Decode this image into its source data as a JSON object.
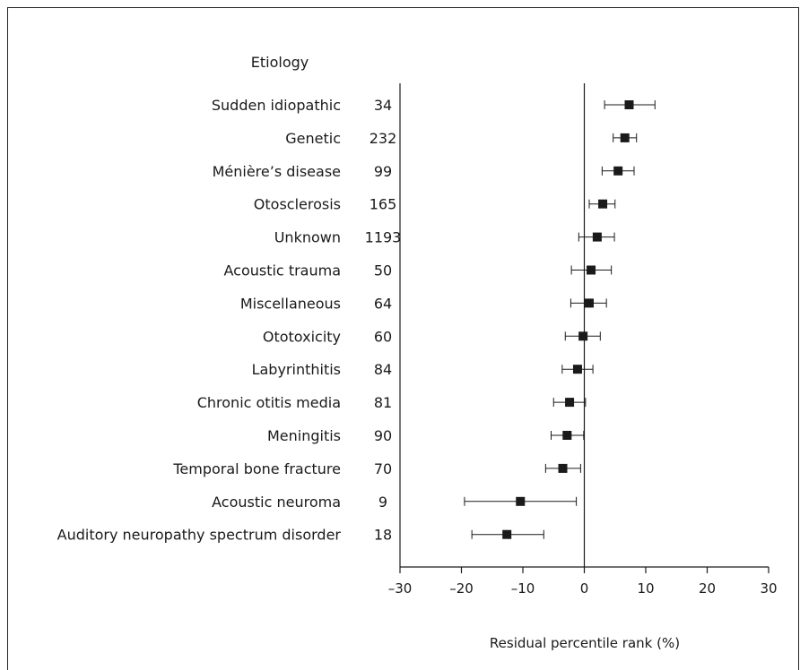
{
  "chart_data": {
    "type": "scatter",
    "subtype": "forest-plot",
    "column_header": "Etiology",
    "xlabel": "Residual percentile rank (%)",
    "xlim": [
      -30,
      30
    ],
    "xticks": [
      "–30",
      "–20",
      "–10",
      "0",
      "10",
      "20",
      "30"
    ],
    "xtick_values": [
      -30,
      -20,
      -10,
      0,
      10,
      20,
      30
    ],
    "reference_line_x": 0,
    "rows": [
      {
        "label": "Sudden idiopathic",
        "n": "34",
        "estimate": 7.3,
        "lower": 3.3,
        "upper": 11.5
      },
      {
        "label": "Genetic",
        "n": "232",
        "estimate": 6.6,
        "lower": 4.7,
        "upper": 8.5
      },
      {
        "label": "Ménière’s disease",
        "n": "99",
        "estimate": 5.5,
        "lower": 2.9,
        "upper": 8.1
      },
      {
        "label": "Otosclerosis",
        "n": "165",
        "estimate": 3.0,
        "lower": 0.8,
        "upper": 5.0
      },
      {
        "label": "Unknown",
        "n": "1193",
        "estimate": 2.1,
        "lower": -0.9,
        "upper": 4.9
      },
      {
        "label": "Acoustic trauma",
        "n": "50",
        "estimate": 1.1,
        "lower": -2.1,
        "upper": 4.4
      },
      {
        "label": "Miscellaneous",
        "n": "64",
        "estimate": 0.8,
        "lower": -2.2,
        "upper": 3.6
      },
      {
        "label": "Ototoxicity",
        "n": "60",
        "estimate": -0.2,
        "lower": -3.1,
        "upper": 2.6
      },
      {
        "label": "Labyrinthitis",
        "n": "84",
        "estimate": -1.1,
        "lower": -3.6,
        "upper": 1.4
      },
      {
        "label": "Chronic otitis media",
        "n": "81",
        "estimate": -2.4,
        "lower": -5.0,
        "upper": 0.2
      },
      {
        "label": "Meningitis",
        "n": "90",
        "estimate": -2.8,
        "lower": -5.4,
        "upper": -0.1
      },
      {
        "label": "Temporal bone fracture",
        "n": "70",
        "estimate": -3.5,
        "lower": -6.3,
        "upper": -0.6
      },
      {
        "label": "Acoustic neuroma",
        "n": "9",
        "estimate": -10.4,
        "lower": -19.5,
        "upper": -1.3
      },
      {
        "label": "Auditory neuropathy spectrum disorder",
        "n": "18",
        "estimate": -12.6,
        "lower": -18.3,
        "upper": -6.6
      }
    ],
    "marker_color": "#1a1a1a",
    "line_color": "#1a1a1a"
  }
}
